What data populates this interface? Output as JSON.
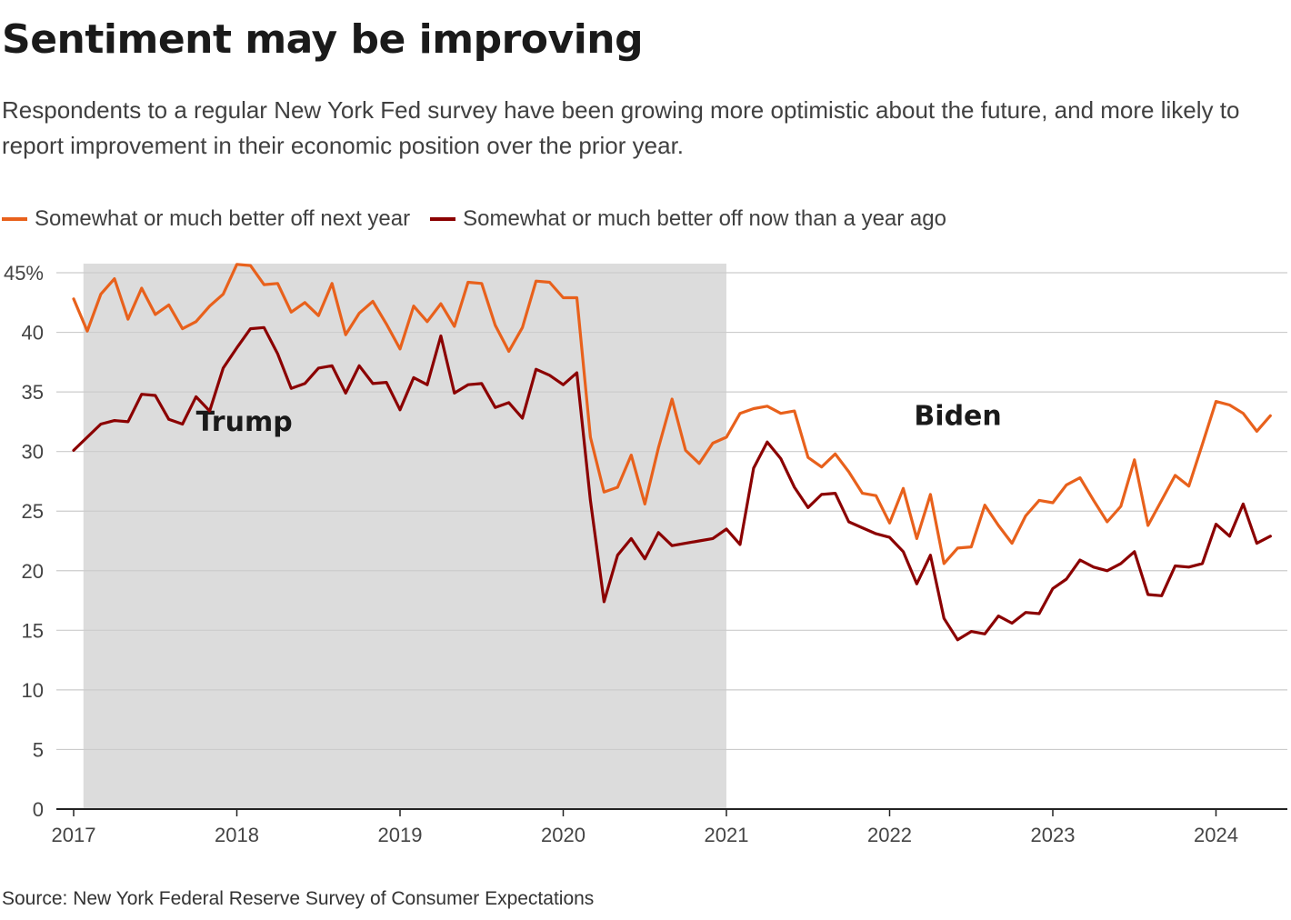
{
  "title": "Sentiment may be improving",
  "subtitle": "Respondents to a regular New York Fed survey have been growing more optimistic about the future, and more likely to report improvement in their economic position over the prior year.",
  "source": "Source: New York Federal Reserve Survey of Consumer Expectations",
  "colors": {
    "next_year": "#e8611c",
    "now_vs_year_ago": "#8b0000",
    "shade": "#dcdcdc",
    "grid": "#cccccc"
  },
  "legend": [
    {
      "label": "Somewhat or much better off next year",
      "color": "#e8611c"
    },
    {
      "label": "Somewhat or much better off now than a year ago",
      "color": "#8b0000"
    }
  ],
  "chart_data": {
    "type": "line",
    "title": "Sentiment may be improving",
    "xlabel": "",
    "ylabel": "",
    "x_start": 2017.0,
    "x_step_months": 1,
    "xlim": [
      2017.0,
      2024.75
    ],
    "ylim": [
      0,
      45
    ],
    "y_ticks": [
      0,
      5,
      10,
      15,
      20,
      25,
      30,
      35,
      40,
      45
    ],
    "y_tick_labels": [
      "0",
      "5",
      "10",
      "15",
      "20",
      "25",
      "30",
      "35",
      "40",
      "45%"
    ],
    "x_ticks": [
      2017,
      2018,
      2019,
      2020,
      2021,
      2022,
      2023,
      2024
    ],
    "x_tick_labels": [
      "2017",
      "2018",
      "2019",
      "2020",
      "2021",
      "2022",
      "2023",
      "2024"
    ],
    "grid": true,
    "shaded_periods": [
      {
        "start": 2017.06,
        "end": 2021.0,
        "label": "Trump"
      }
    ],
    "annotations": [
      {
        "text": "Trump",
        "x": 2017.75,
        "y": 32.5
      },
      {
        "text": "Biden",
        "x": 2022.15,
        "y": 33.0
      }
    ],
    "series": [
      {
        "name": "Somewhat or much better off next year",
        "values": [
          42.8,
          40.1,
          43.2,
          44.5,
          41.1,
          43.7,
          41.5,
          42.3,
          40.3,
          40.9,
          42.2,
          43.2,
          45.7,
          45.6,
          44.0,
          44.1,
          41.7,
          42.5,
          41.4,
          44.1,
          39.8,
          41.6,
          42.6,
          40.7,
          38.6,
          42.2,
          40.9,
          42.4,
          40.5,
          44.2,
          44.1,
          40.6,
          38.4,
          40.4,
          44.3,
          44.2,
          42.9,
          42.9,
          31.2,
          26.6,
          27.0,
          29.7,
          25.6,
          30.3,
          34.4,
          30.1,
          29.0,
          30.7,
          31.2,
          33.2,
          33.6,
          33.8,
          33.2,
          33.4,
          29.5,
          28.7,
          29.8,
          28.3,
          26.5,
          26.3,
          24.0,
          26.9,
          22.7,
          26.4,
          20.6,
          21.9,
          22.0,
          25.5,
          23.8,
          22.3,
          24.6,
          25.9,
          25.7,
          27.2,
          27.8,
          25.9,
          24.1,
          25.4,
          29.3,
          23.8,
          25.9,
          28.0,
          27.1,
          30.6,
          34.2,
          33.9,
          33.2,
          31.7,
          33.0
        ]
      },
      {
        "name": "Somewhat or much better off now than a year ago",
        "values": [
          30.1,
          31.2,
          32.3,
          32.6,
          32.5,
          34.8,
          34.7,
          32.7,
          32.3,
          34.6,
          33.4,
          37.0,
          38.7,
          40.3,
          40.4,
          38.2,
          35.3,
          35.7,
          37.0,
          37.2,
          34.9,
          37.2,
          35.7,
          35.8,
          33.5,
          36.2,
          35.6,
          39.7,
          34.9,
          35.6,
          35.7,
          33.7,
          34.1,
          32.8,
          36.9,
          36.4,
          35.6,
          36.6,
          25.9,
          17.4,
          21.3,
          22.7,
          21.0,
          23.2,
          22.1,
          22.3,
          22.5,
          22.7,
          23.5,
          22.2,
          28.6,
          30.8,
          29.4,
          27.0,
          25.3,
          26.4,
          26.5,
          24.1,
          23.6,
          23.1,
          22.8,
          21.6,
          18.9,
          21.3,
          16.0,
          14.2,
          14.9,
          14.7,
          16.2,
          15.6,
          16.5,
          16.4,
          18.5,
          19.3,
          20.9,
          20.3,
          20.0,
          20.6,
          21.6,
          18.0,
          17.9,
          20.4,
          20.3,
          20.6,
          23.9,
          22.9,
          25.6,
          22.3,
          22.9
        ]
      }
    ]
  }
}
